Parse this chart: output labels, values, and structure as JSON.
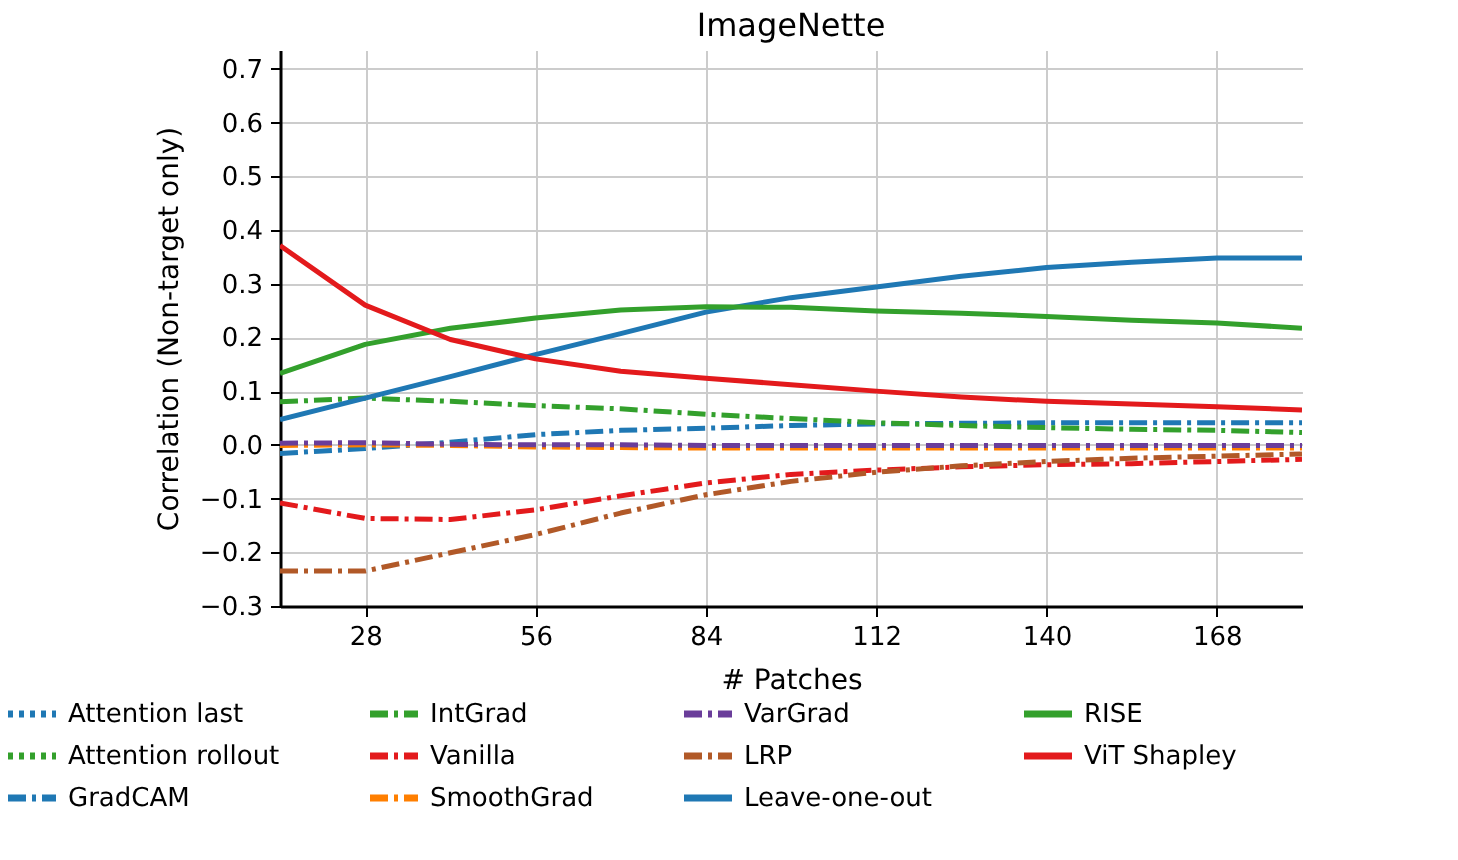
{
  "chart_data": {
    "type": "line",
    "title": "ImageNette",
    "xlabel": "# Patches",
    "ylabel": "Correlation (Non-target only)",
    "x": [
      14,
      28,
      42,
      56,
      70,
      84,
      98,
      112,
      126,
      140,
      154,
      168,
      182
    ],
    "series": [
      {
        "name": "Attention last",
        "color": "#1f78b4",
        "line_style": "dotted",
        "values": [
          null,
          null,
          null,
          null,
          null,
          null,
          null,
          null,
          null,
          null,
          null,
          null,
          null
        ]
      },
      {
        "name": "Attention rollout",
        "color": "#33a02c",
        "line_style": "dotted",
        "values": [
          null,
          null,
          null,
          null,
          null,
          null,
          null,
          null,
          null,
          null,
          null,
          null,
          null
        ]
      },
      {
        "name": "GradCAM",
        "color": "#1f78b4",
        "line_style": "dashed",
        "values": [
          -0.016,
          -0.007,
          0.005,
          0.019,
          0.027,
          0.031,
          0.036,
          0.039,
          0.04,
          0.041,
          0.041,
          0.041,
          0.041
        ]
      },
      {
        "name": "IntGrad",
        "color": "#33a02c",
        "line_style": "dashed",
        "values": [
          0.08,
          0.087,
          0.081,
          0.073,
          0.067,
          0.057,
          0.049,
          0.041,
          0.036,
          0.032,
          0.029,
          0.027,
          0.023
        ]
      },
      {
        "name": "Vanilla",
        "color": "#e31a1c",
        "line_style": "dashed",
        "values": [
          -0.108,
          -0.137,
          -0.139,
          -0.121,
          -0.095,
          -0.071,
          -0.055,
          -0.047,
          -0.041,
          -0.037,
          -0.035,
          -0.031,
          -0.027
        ]
      },
      {
        "name": "SmoothGrad",
        "color": "#ff7f00",
        "line_style": "dashed",
        "values": [
          -0.001,
          0.0,
          -0.001,
          -0.004,
          -0.005,
          -0.006,
          -0.006,
          -0.006,
          -0.006,
          -0.006,
          -0.006,
          -0.006,
          -0.006
        ]
      },
      {
        "name": "VarGrad",
        "color": "#6a3d9a",
        "line_style": "dashed",
        "values": [
          0.003,
          0.004,
          0.001,
          0.0,
          0.0,
          -0.001,
          -0.001,
          -0.001,
          -0.001,
          -0.001,
          -0.001,
          -0.001,
          -0.001
        ]
      },
      {
        "name": "LRP",
        "color": "#b15928",
        "line_style": "dashed",
        "values": [
          -0.235,
          -0.235,
          -0.201,
          -0.167,
          -0.127,
          -0.093,
          -0.068,
          -0.051,
          -0.039,
          -0.031,
          -0.025,
          -0.021,
          -0.017
        ]
      },
      {
        "name": "Leave-one-out",
        "color": "#1f78b4",
        "line_style": "solid",
        "values": [
          0.047,
          0.087,
          0.127,
          0.168,
          0.207,
          0.247,
          0.274,
          0.294,
          0.314,
          0.33,
          0.34,
          0.348,
          0.348
        ]
      },
      {
        "name": "RISE",
        "color": "#33a02c",
        "line_style": "solid",
        "values": [
          0.133,
          0.187,
          0.217,
          0.236,
          0.251,
          0.257,
          0.256,
          0.249,
          0.245,
          0.239,
          0.232,
          0.227,
          0.217
        ]
      },
      {
        "name": "ViT Shapley",
        "color": "#e31a1c",
        "line_style": "solid",
        "values": [
          0.371,
          0.26,
          0.196,
          0.16,
          0.137,
          0.124,
          0.112,
          0.1,
          0.089,
          0.081,
          0.076,
          0.071,
          0.065
        ]
      }
    ],
    "xlim": [
      14,
      182
    ],
    "xticks": [
      28,
      56,
      84,
      112,
      140,
      168
    ],
    "ylim": [
      -0.3,
      0.735
    ],
    "yticks": [
      {
        "value": -0.3,
        "label": "−0.3"
      },
      {
        "value": -0.2,
        "label": "−0.2"
      },
      {
        "value": -0.1,
        "label": "−0.1"
      },
      {
        "value": 0,
        "label": "0.0"
      },
      {
        "value": 0.1,
        "label": "0.1"
      },
      {
        "value": 0.2,
        "label": "0.2"
      },
      {
        "value": 0.3,
        "label": "0.3"
      },
      {
        "value": 0.4,
        "label": "0.4"
      },
      {
        "value": 0.5,
        "label": "0.5"
      },
      {
        "value": 0.6,
        "label": "0.6"
      },
      {
        "value": 0.7,
        "label": "0.7"
      }
    ],
    "grid": true,
    "legend": "bottom",
    "marker": "none"
  }
}
